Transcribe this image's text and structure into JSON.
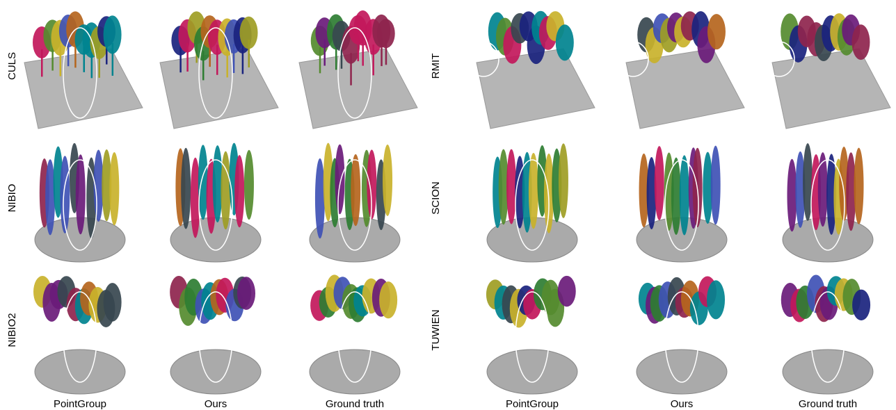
{
  "panels": [
    {
      "rows": [
        "CULS",
        "NIBIO",
        "NIBIO2"
      ],
      "columns": [
        "PointGroup",
        "Ours",
        "Ground truth"
      ]
    },
    {
      "rows": [
        "RMIT",
        "SCION",
        "TUWIEN"
      ],
      "columns": [
        "PointGroup",
        "Ours",
        "Ground truth"
      ]
    }
  ]
}
